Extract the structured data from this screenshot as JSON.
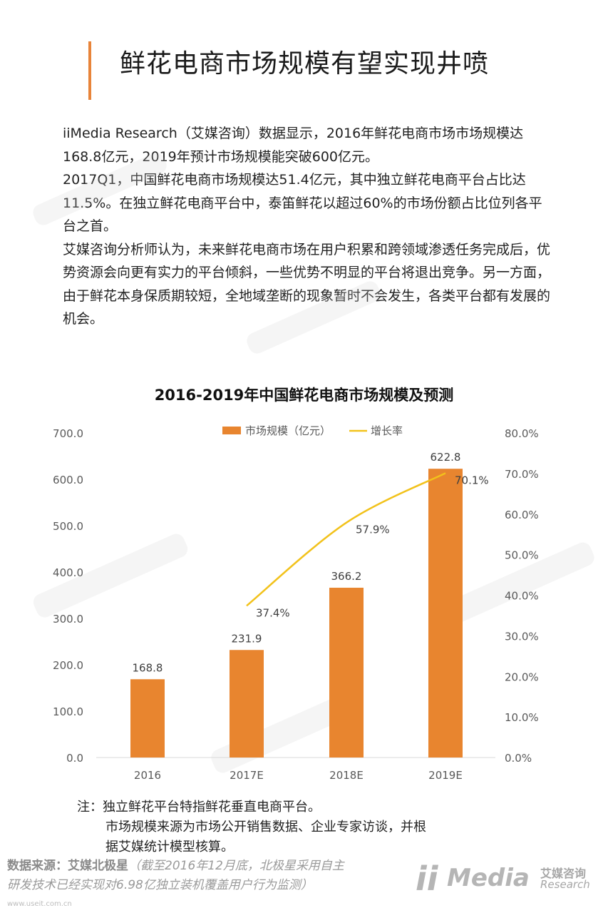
{
  "page": {
    "title": "鲜花电商市场规模有望实现井喷",
    "paragraphs": [
      "iiMedia Research（艾媒咨询）数据显示，2016年鲜花电商市场市场规模达168.8亿元，2019年预计市场规模能突破600亿元。",
      "2017Q1，中国鲜花电商市场规模达51.4亿元，其中独立鲜花电商平台占比达11.5%。在独立鲜花电商平台中，泰笛鲜花以超过60%的市场份额占比位列各平台之首。",
      "艾媒咨询分析师认为，未来鲜花电商市场在用户积累和跨领域渗透任务完成后，优势资源会向更有实力的平台倾斜，一些优势不明显的平台将退出竞争。另一方面，由于鲜花本身保质期较短，全地域垄断的现象暂时不会发生，各类平台都有发展的机会。"
    ],
    "note_line1": "注：独立鲜花平台特指鲜花垂直电商平台。",
    "note_line2": "市场规模来源为市场公开销售数据、企业专家访谈，并根",
    "note_line3": "据艾媒统计模型核算。",
    "source_label": "数据来源：艾媒北极星",
    "source_detail_1": "（截至2016年12月底，北极星采用自主",
    "source_detail_2": "研发技术已经实现对6.98亿独立装机覆盖用户行为监测）",
    "logo_ii": "ii",
    "logo_media": "Media",
    "logo_cn": "艾媒咨询",
    "logo_en": "Research",
    "site": "www.useit.com.cn"
  },
  "chart_data": {
    "type": "bar",
    "title": "2016-2019年中国鲜花电商市场规模及预测",
    "categories": [
      "2016",
      "2017E",
      "2018E",
      "2019E"
    ],
    "series": [
      {
        "name": "市场规模（亿元）",
        "type": "bar",
        "axis": "left",
        "values": [
          168.8,
          231.9,
          366.2,
          622.8
        ],
        "labels": [
          "168.8",
          "231.9",
          "366.2",
          "622.8"
        ],
        "color": "#e8852f"
      },
      {
        "name": "增长率",
        "type": "line",
        "axis": "right",
        "values": [
          null,
          37.4,
          57.9,
          70.1
        ],
        "labels": [
          "",
          "37.4%",
          "57.9%",
          "70.1%"
        ],
        "color": "#f2c21b"
      }
    ],
    "ylim_left": [
      0,
      700
    ],
    "yticks_left": [
      "0.0",
      "100.0",
      "200.0",
      "300.0",
      "400.0",
      "500.0",
      "600.0",
      "700.0"
    ],
    "ylim_right": [
      0,
      80
    ],
    "yticks_right": [
      "0.0%",
      "10.0%",
      "20.0%",
      "30.0%",
      "40.0%",
      "50.0%",
      "60.0%",
      "70.0%",
      "80.0%"
    ],
    "legend_position": "top-center",
    "grid": false
  }
}
